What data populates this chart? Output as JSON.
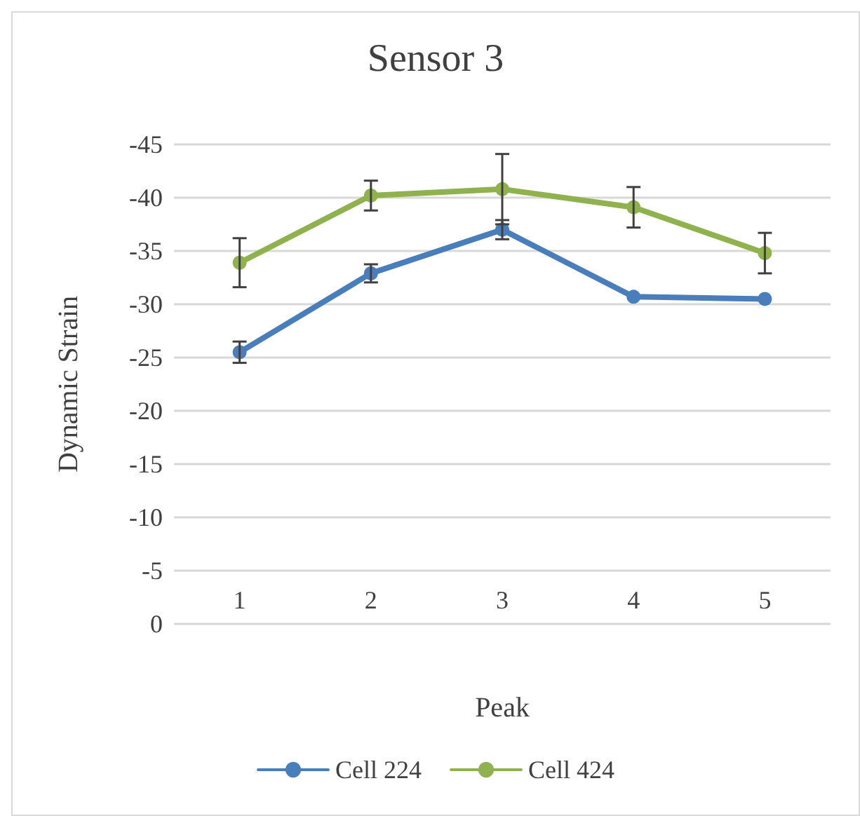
{
  "chart_data": {
    "type": "line",
    "title": "Sensor 3",
    "xlabel": "Peak",
    "ylabel": "Dynamic Strain",
    "categories": [
      "1",
      "2",
      "3",
      "4",
      "5"
    ],
    "series": [
      {
        "name": "Cell 224",
        "color": "#4a7ebb",
        "values": [
          -25.5,
          -32.9,
          -37.0,
          -30.7,
          -30.5
        ],
        "errors": [
          1.0,
          0.85,
          0.9,
          null,
          null
        ]
      },
      {
        "name": "Cell 424",
        "color": "#8fb24f",
        "values": [
          -33.9,
          -40.2,
          -40.8,
          -39.1,
          -34.8
        ],
        "errors": [
          2.3,
          1.4,
          3.3,
          1.9,
          1.9
        ]
      }
    ],
    "ylim": [
      0,
      -45
    ],
    "yticks": [
      0,
      -5,
      -10,
      -15,
      -20,
      -25,
      -30,
      -35,
      -40,
      -45
    ],
    "grid": "y",
    "legend": "bottom",
    "marker": "circle",
    "line_style": "solid"
  }
}
